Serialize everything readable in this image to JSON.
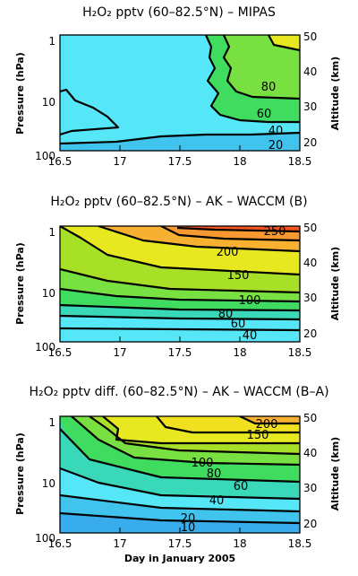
{
  "chart_data": [
    {
      "type": "contour",
      "title": "H₂O₂ pptv (60–82.5°N) – MIPAS",
      "xlabel": "",
      "ylabel": "Pressure (hPa)",
      "ylabel_right": "Altitude (km)",
      "x_ticks": [
        "16.5",
        "17",
        "17.5",
        "18",
        "18.5"
      ],
      "y_ticks": [
        "1",
        "10",
        "100"
      ],
      "y2_ticks": [
        "50",
        "40",
        "30",
        "20"
      ],
      "xlim": [
        16.5,
        18.5
      ],
      "ylim_hPa": [
        100,
        0.7
      ],
      "y_scale": "log",
      "contour_labels": [
        "80",
        "60",
        "40",
        "20"
      ]
    },
    {
      "type": "contour",
      "title": "H₂O₂ pptv (60–82.5°N) – AK – WACCM (B)",
      "xlabel": "",
      "ylabel": "Pressure (hPa)",
      "ylabel_right": "Altitude (km)",
      "x_ticks": [
        "16.5",
        "17",
        "17.5",
        "18",
        "18.5"
      ],
      "y_ticks": [
        "1",
        "10",
        "100"
      ],
      "y2_ticks": [
        "50",
        "40",
        "30",
        "20"
      ],
      "xlim": [
        16.5,
        18.5
      ],
      "ylim_hPa": [
        100,
        0.7
      ],
      "y_scale": "log",
      "contour_labels": [
        "250",
        "200",
        "150",
        "100",
        "80",
        "60",
        "40"
      ]
    },
    {
      "type": "contour",
      "title": "H₂O₂ pptv diff. (60–82.5°N) – AK – WACCM (B–A)",
      "xlabel": "Day in January 2005",
      "ylabel": "Pressure (hPa)",
      "ylabel_right": "Altitude (km)",
      "x_ticks": [
        "16.5",
        "17",
        "17.5",
        "18",
        "18.5"
      ],
      "y_ticks": [
        "1",
        "10",
        "100"
      ],
      "y2_ticks": [
        "50",
        "40",
        "30",
        "20"
      ],
      "xlim": [
        16.5,
        18.5
      ],
      "ylim_hPa": [
        100,
        0.7
      ],
      "y_scale": "log",
      "contour_labels": [
        "200",
        "150",
        "100",
        "80",
        "60",
        "40",
        "20",
        "10"
      ]
    }
  ],
  "colors": {
    "c_cyan": "#55e6f8",
    "c_lightblue": "#40c4ee",
    "c_blue": "#38acec",
    "c_teal": "#38d8b8",
    "c_green1": "#40dc60",
    "c_green2": "#78e040",
    "c_yellowgreen": "#a8e028",
    "c_yellow": "#e8e820",
    "c_orange1": "#f8b030",
    "c_orange2": "#f89830",
    "c_red": "#f45420"
  }
}
